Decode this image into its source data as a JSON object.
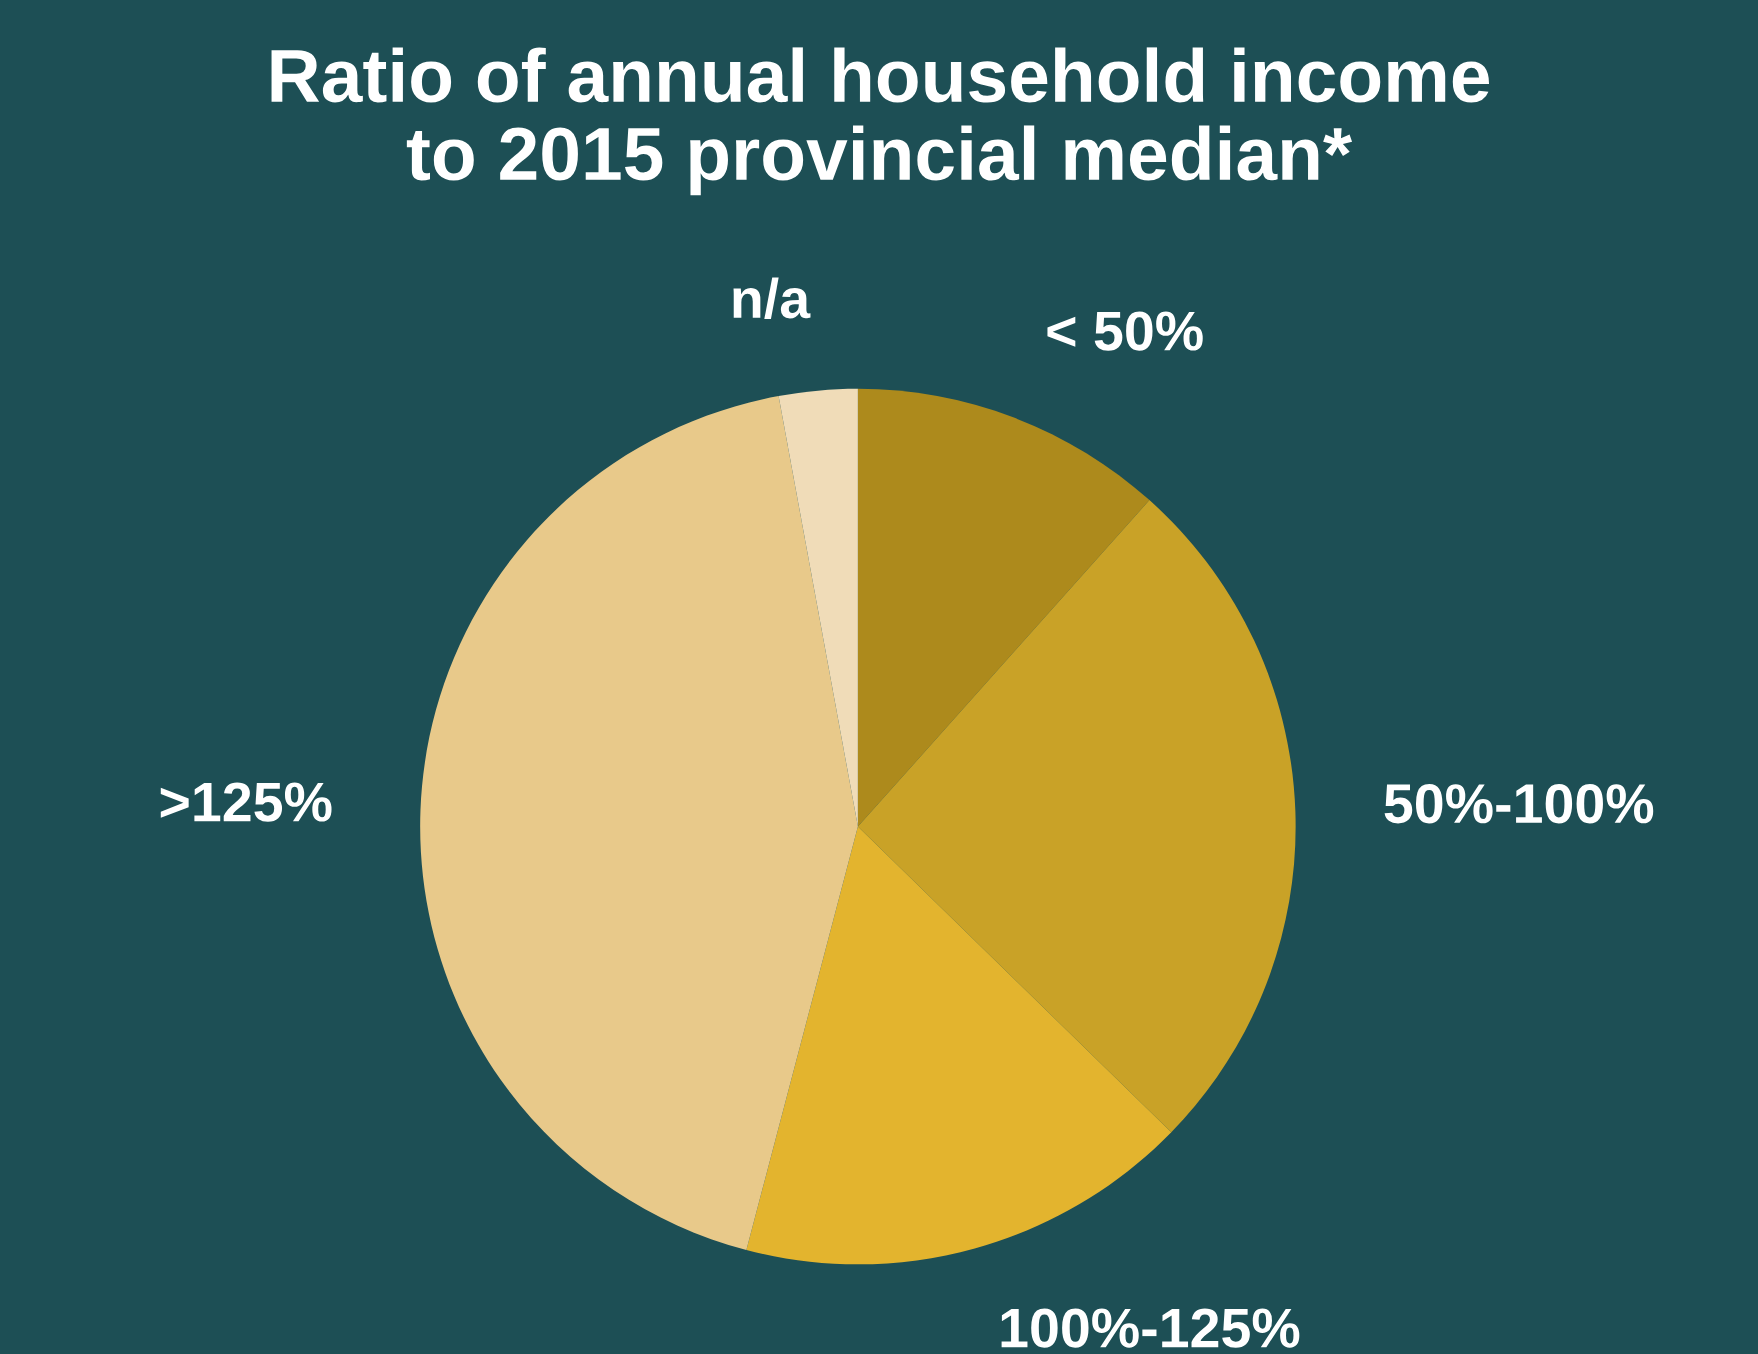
{
  "chart_data": {
    "type": "pie",
    "title": "Ratio of annual household income\nto 2015 provincial median*",
    "categories": [
      "< 50%",
      "50%-100%",
      "100%-125%",
      ">125%",
      "n/a"
    ],
    "values": [
      11.6,
      25.7,
      16.8,
      43.0,
      2.9
    ],
    "colors": [
      "#ad8a1c",
      "#c9a227",
      "#e3b42e",
      "#e8c98a",
      "#f0dcb8"
    ],
    "legend": false
  }
}
